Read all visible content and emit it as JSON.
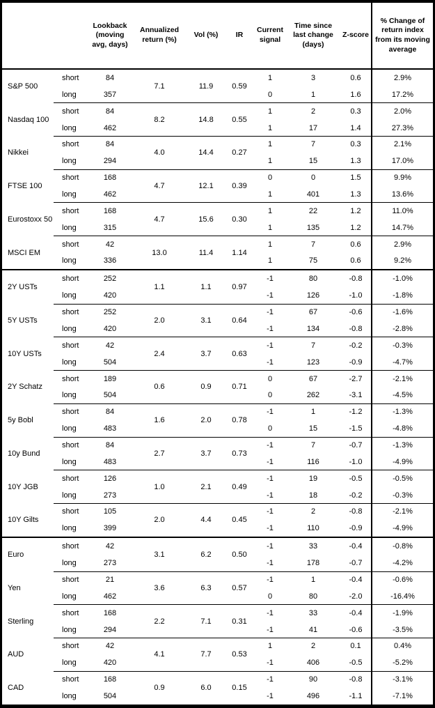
{
  "header": {
    "asset": "",
    "position": "",
    "lookback": "Lookback (moving avg, days)",
    "annualized": "Annualized return (%)",
    "vol": "Vol (%)",
    "ir": "IR",
    "signal": "Current signal",
    "time": "Time since last change (days)",
    "zscore": "Z-score",
    "pct": "% Change of return index from its moving average"
  },
  "sections": [
    {
      "id": "equities",
      "groups": [
        {
          "asset": "S&P 500",
          "annualized": "7.1",
          "vol": "11.9",
          "ir": "0.59",
          "rows": [
            {
              "position": "short",
              "lookback": "84",
              "signal": "1",
              "time": "3",
              "zscore": "0.6",
              "pct": "2.9%"
            },
            {
              "position": "long",
              "lookback": "357",
              "signal": "0",
              "time": "1",
              "zscore": "1.6",
              "pct": "17.2%"
            }
          ]
        },
        {
          "asset": "Nasdaq 100",
          "annualized": "8.2",
          "vol": "14.8",
          "ir": "0.55",
          "rows": [
            {
              "position": "short",
              "lookback": "84",
              "signal": "1",
              "time": "2",
              "zscore": "0.3",
              "pct": "2.0%"
            },
            {
              "position": "long",
              "lookback": "462",
              "signal": "1",
              "time": "17",
              "zscore": "1.4",
              "pct": "27.3%"
            }
          ]
        },
        {
          "asset": "Nikkei",
          "annualized": "4.0",
          "vol": "14.4",
          "ir": "0.27",
          "rows": [
            {
              "position": "short",
              "lookback": "84",
              "signal": "1",
              "time": "7",
              "zscore": "0.3",
              "pct": "2.1%"
            },
            {
              "position": "long",
              "lookback": "294",
              "signal": "1",
              "time": "15",
              "zscore": "1.3",
              "pct": "17.0%"
            }
          ]
        },
        {
          "asset": "FTSE 100",
          "annualized": "4.7",
          "vol": "12.1",
          "ir": "0.39",
          "rows": [
            {
              "position": "short",
              "lookback": "168",
              "signal": "0",
              "time": "0",
              "zscore": "1.5",
              "pct": "9.9%"
            },
            {
              "position": "long",
              "lookback": "462",
              "signal": "1",
              "time": "401",
              "zscore": "1.3",
              "pct": "13.6%"
            }
          ]
        },
        {
          "asset": "Eurostoxx 50",
          "annualized": "4.7",
          "vol": "15.6",
          "ir": "0.30",
          "rows": [
            {
              "position": "short",
              "lookback": "168",
              "signal": "1",
              "time": "22",
              "zscore": "1.2",
              "pct": "11.0%"
            },
            {
              "position": "long",
              "lookback": "315",
              "signal": "1",
              "time": "135",
              "zscore": "1.2",
              "pct": "14.7%"
            }
          ]
        },
        {
          "asset": "MSCI EM",
          "annualized": "13.0",
          "vol": "11.4",
          "ir": "1.14",
          "rows": [
            {
              "position": "short",
              "lookback": "42",
              "signal": "1",
              "time": "7",
              "zscore": "0.6",
              "pct": "2.9%"
            },
            {
              "position": "long",
              "lookback": "336",
              "signal": "1",
              "time": "75",
              "zscore": "0.6",
              "pct": "9.2%"
            }
          ]
        }
      ]
    },
    {
      "id": "bonds",
      "groups": [
        {
          "asset": "2Y USTs",
          "annualized": "1.1",
          "vol": "1.1",
          "ir": "0.97",
          "rows": [
            {
              "position": "short",
              "lookback": "252",
              "signal": "-1",
              "time": "80",
              "zscore": "-0.8",
              "pct": "-1.0%"
            },
            {
              "position": "long",
              "lookback": "420",
              "signal": "-1",
              "time": "126",
              "zscore": "-1.0",
              "pct": "-1.8%"
            }
          ]
        },
        {
          "asset": "5Y USTs",
          "annualized": "2.0",
          "vol": "3.1",
          "ir": "0.64",
          "rows": [
            {
              "position": "short",
              "lookback": "252",
              "signal": "-1",
              "time": "67",
              "zscore": "-0.6",
              "pct": "-1.6%"
            },
            {
              "position": "long",
              "lookback": "420",
              "signal": "-1",
              "time": "134",
              "zscore": "-0.8",
              "pct": "-2.8%"
            }
          ]
        },
        {
          "asset": "10Y USTs",
          "annualized": "2.4",
          "vol": "3.7",
          "ir": "0.63",
          "rows": [
            {
              "position": "short",
              "lookback": "42",
              "signal": "-1",
              "time": "7",
              "zscore": "-0.2",
              "pct": "-0.3%"
            },
            {
              "position": "long",
              "lookback": "504",
              "signal": "-1",
              "time": "123",
              "zscore": "-0.9",
              "pct": "-4.7%"
            }
          ]
        },
        {
          "asset": "2Y Schatz",
          "annualized": "0.6",
          "vol": "0.9",
          "ir": "0.71",
          "rows": [
            {
              "position": "short",
              "lookback": "189",
              "signal": "0",
              "time": "67",
              "zscore": "-2.7",
              "pct": "-2.1%"
            },
            {
              "position": "long",
              "lookback": "504",
              "signal": "0",
              "time": "262",
              "zscore": "-3.1",
              "pct": "-4.5%"
            }
          ]
        },
        {
          "asset": "5y Bobl",
          "annualized": "1.6",
          "vol": "2.0",
          "ir": "0.78",
          "rows": [
            {
              "position": "short",
              "lookback": "84",
              "signal": "-1",
              "time": "1",
              "zscore": "-1.2",
              "pct": "-1.3%"
            },
            {
              "position": "long",
              "lookback": "483",
              "signal": "0",
              "time": "15",
              "zscore": "-1.5",
              "pct": "-4.8%"
            }
          ]
        },
        {
          "asset": "10y Bund",
          "annualized": "2.7",
          "vol": "3.7",
          "ir": "0.73",
          "rows": [
            {
              "position": "short",
              "lookback": "84",
              "signal": "-1",
              "time": "7",
              "zscore": "-0.7",
              "pct": "-1.3%"
            },
            {
              "position": "long",
              "lookback": "483",
              "signal": "-1",
              "time": "116",
              "zscore": "-1.0",
              "pct": "-4.9%"
            }
          ]
        },
        {
          "asset": "10Y JGB",
          "annualized": "1.0",
          "vol": "2.1",
          "ir": "0.49",
          "rows": [
            {
              "position": "short",
              "lookback": "126",
              "signal": "-1",
              "time": "19",
              "zscore": "-0.5",
              "pct": "-0.5%"
            },
            {
              "position": "long",
              "lookback": "273",
              "signal": "-1",
              "time": "18",
              "zscore": "-0.2",
              "pct": "-0.3%"
            }
          ]
        },
        {
          "asset": "10Y Gilts",
          "annualized": "2.0",
          "vol": "4.4",
          "ir": "0.45",
          "rows": [
            {
              "position": "short",
              "lookback": "105",
              "signal": "-1",
              "time": "2",
              "zscore": "-0.8",
              "pct": "-2.1%"
            },
            {
              "position": "long",
              "lookback": "399",
              "signal": "-1",
              "time": "110",
              "zscore": "-0.9",
              "pct": "-4.9%"
            }
          ]
        }
      ]
    },
    {
      "id": "fx",
      "groups": [
        {
          "asset": "Euro",
          "annualized": "3.1",
          "vol": "6.2",
          "ir": "0.50",
          "rows": [
            {
              "position": "short",
              "lookback": "42",
              "signal": "-1",
              "time": "33",
              "zscore": "-0.4",
              "pct": "-0.8%"
            },
            {
              "position": "long",
              "lookback": "273",
              "signal": "-1",
              "time": "178",
              "zscore": "-0.7",
              "pct": "-4.2%"
            }
          ]
        },
        {
          "asset": "Yen",
          "annualized": "3.6",
          "vol": "6.3",
          "ir": "0.57",
          "rows": [
            {
              "position": "short",
              "lookback": "21",
              "signal": "-1",
              "time": "1",
              "zscore": "-0.4",
              "pct": "-0.6%"
            },
            {
              "position": "long",
              "lookback": "462",
              "signal": "0",
              "time": "80",
              "zscore": "-2.0",
              "pct": "-16.4%"
            }
          ]
        },
        {
          "asset": "Sterling",
          "annualized": "2.2",
          "vol": "7.1",
          "ir": "0.31",
          "rows": [
            {
              "position": "short",
              "lookback": "168",
              "signal": "-1",
              "time": "33",
              "zscore": "-0.4",
              "pct": "-1.9%"
            },
            {
              "position": "long",
              "lookback": "294",
              "signal": "-1",
              "time": "41",
              "zscore": "-0.6",
              "pct": "-3.5%"
            }
          ]
        },
        {
          "asset": "AUD",
          "annualized": "4.1",
          "vol": "7.7",
          "ir": "0.53",
          "rows": [
            {
              "position": "short",
              "lookback": "42",
              "signal": "1",
              "time": "2",
              "zscore": "0.1",
              "pct": "0.4%"
            },
            {
              "position": "long",
              "lookback": "420",
              "signal": "-1",
              "time": "406",
              "zscore": "-0.5",
              "pct": "-5.2%"
            }
          ]
        },
        {
          "asset": "CAD",
          "annualized": "0.9",
          "vol": "6.0",
          "ir": "0.15",
          "rows": [
            {
              "position": "short",
              "lookback": "168",
              "signal": "-1",
              "time": "90",
              "zscore": "-0.8",
              "pct": "-3.1%"
            },
            {
              "position": "long",
              "lookback": "504",
              "signal": "-1",
              "time": "496",
              "zscore": "-1.1",
              "pct": "-7.1%"
            }
          ]
        }
      ]
    }
  ]
}
